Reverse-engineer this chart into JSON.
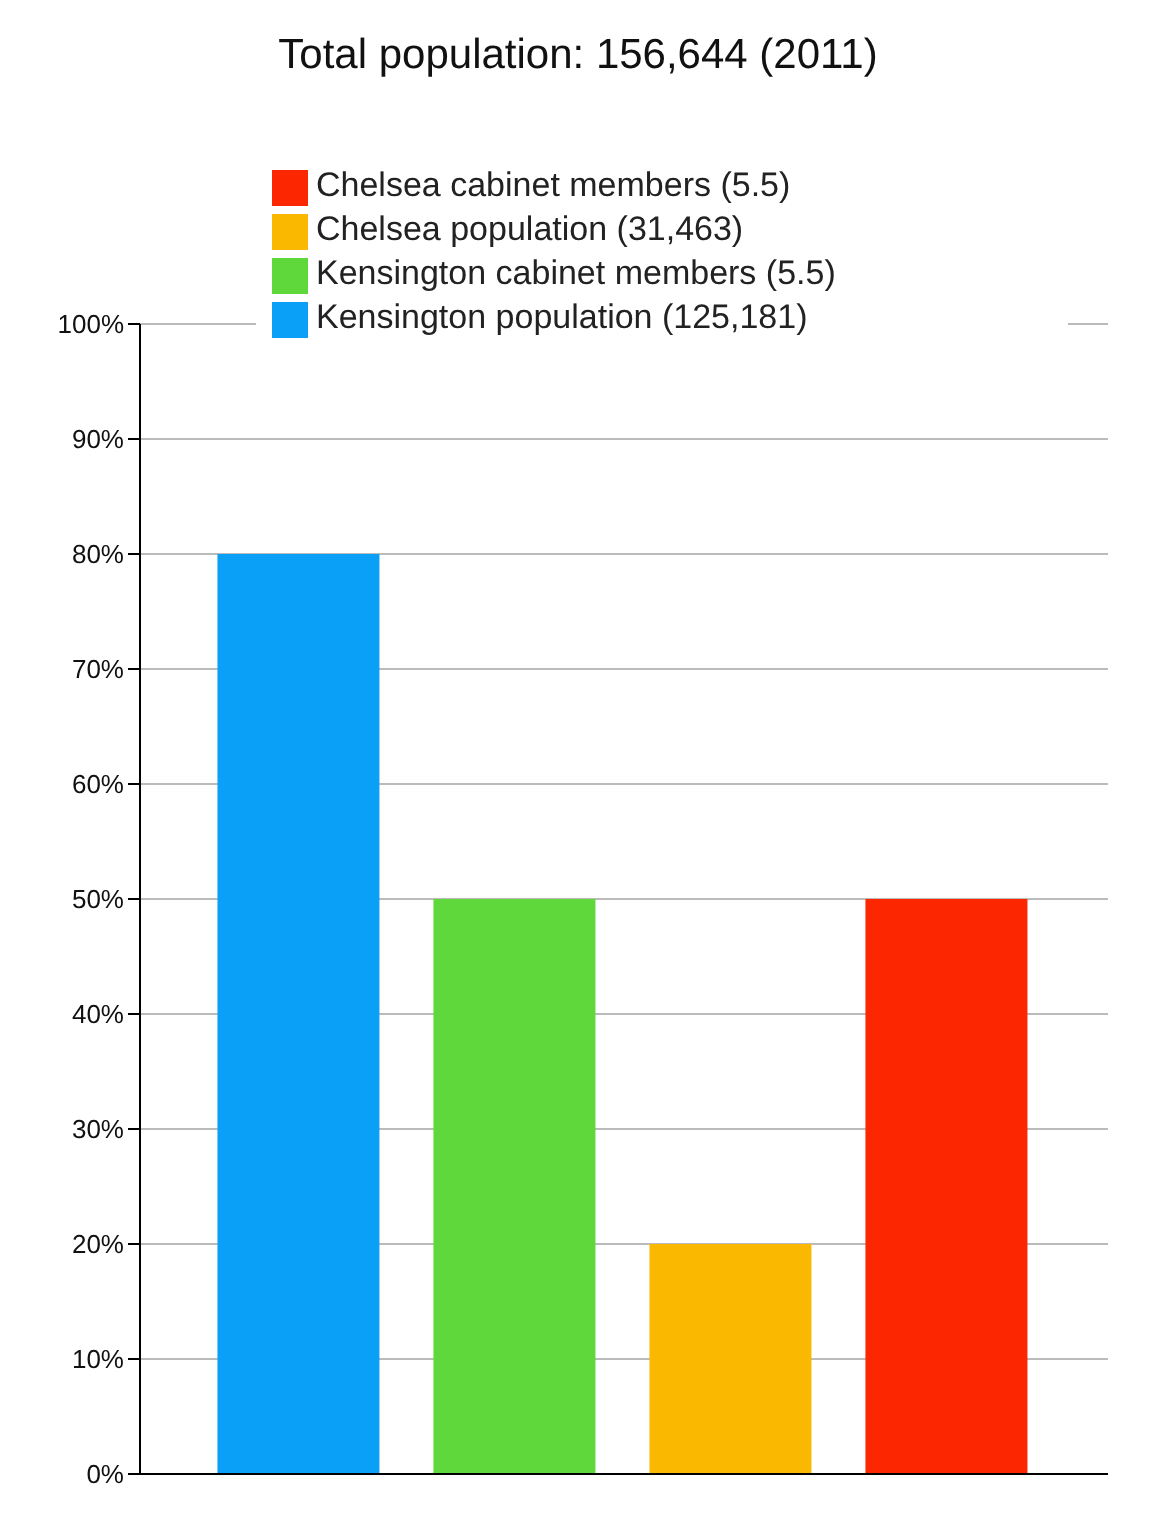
{
  "chart_data": {
    "type": "bar",
    "title": "Total population: 156,644 (2011)",
    "categories": [
      null
    ],
    "series": [
      {
        "name": "Kensington population (125,181)",
        "color": "#0aa0f8",
        "values": [
          80
        ]
      },
      {
        "name": "Kensington cabinet members (5.5)",
        "color": "#5ed83a",
        "values": [
          50
        ]
      },
      {
        "name": "Chelsea population (31,463)",
        "color": "#fbb800",
        "values": [
          20
        ]
      },
      {
        "name": "Chelsea cabinet members (5.5)",
        "color": "#fc2600",
        "values": [
          50
        ]
      }
    ],
    "ylim": [
      0,
      100
    ],
    "yticks": [
      {
        "value": 0,
        "label": "0%"
      },
      {
        "value": 10,
        "label": "10%"
      },
      {
        "value": 20,
        "label": "20%"
      },
      {
        "value": 30,
        "label": "30%"
      },
      {
        "value": 40,
        "label": "40%"
      },
      {
        "value": 50,
        "label": "50%"
      },
      {
        "value": 60,
        "label": "60%"
      },
      {
        "value": 70,
        "label": "70%"
      },
      {
        "value": 80,
        "label": "80%"
      },
      {
        "value": 90,
        "label": "90%"
      },
      {
        "value": 100,
        "label": "100%"
      }
    ],
    "grid": "y",
    "legend": "top",
    "tick_labels": "y"
  }
}
